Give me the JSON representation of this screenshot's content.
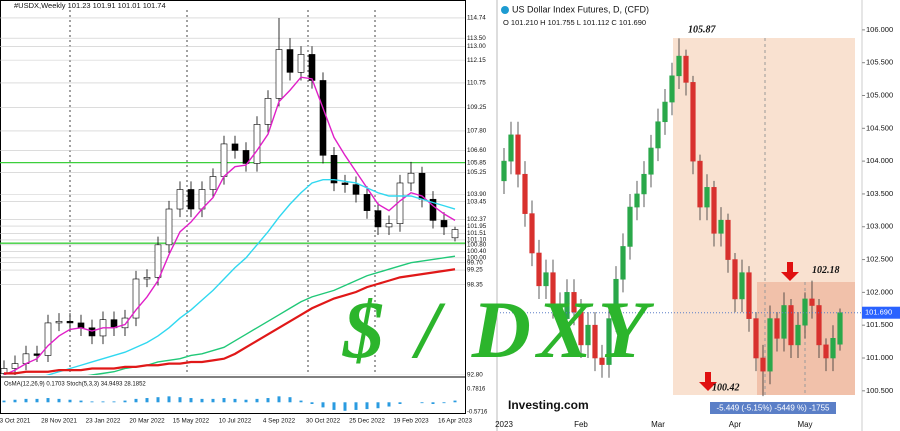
{
  "chart_data": [
    {
      "type": "candlestick",
      "title": "#USDX,Weekly  101.23 101.91 101.01 101.74",
      "categories": [
        null,
        "3 Oct 2021",
        null,
        null,
        null,
        "28 Nov 2021",
        null,
        null,
        null,
        "23 Jan 2022",
        null,
        null,
        null,
        "20 Mar 2022",
        null,
        null,
        null,
        "15 May 2022",
        null,
        null,
        null,
        "10 Jul 2022",
        null,
        null,
        null,
        "4 Sep 2022",
        null,
        null,
        null,
        "30 Oct 2022",
        null,
        null,
        null,
        "25 Dec 2022",
        null,
        null,
        null,
        "19 Feb 2023",
        null,
        null,
        null,
        "16 Apr 2023"
      ],
      "open": [
        92.9,
        93.2,
        93.5,
        94.1,
        94.0,
        96.0,
        96.1,
        96.0,
        95.7,
        95.2,
        96.2,
        95.7,
        96.3,
        98.7,
        98.8,
        100.8,
        103.0,
        104.2,
        103.0,
        104.2,
        105.0,
        107.0,
        106.6,
        105.8,
        108.2,
        109.8,
        112.8,
        111.4,
        112.5,
        110.9,
        106.3,
        104.6,
        104.5,
        103.9,
        102.9,
        101.9,
        102.1,
        104.6,
        105.2,
        103.6,
        102.3,
        101.23
      ],
      "high": [
        93.7,
        94.0,
        94.6,
        94.6,
        96.5,
        96.6,
        96.6,
        96.5,
        96.2,
        96.7,
        96.7,
        96.8,
        99.2,
        99.3,
        101.3,
        103.5,
        104.7,
        104.7,
        104.7,
        105.5,
        107.5,
        107.5,
        107.1,
        108.7,
        110.3,
        114.74,
        113.5,
        113.0,
        113.0,
        111.4,
        106.8,
        105.1,
        105.0,
        104.4,
        103.4,
        102.6,
        105.1,
        105.9,
        105.6,
        104.1,
        102.8,
        101.91
      ],
      "low": [
        92.5,
        92.8,
        93.1,
        93.6,
        93.6,
        95.5,
        95.5,
        95.2,
        94.7,
        94.7,
        95.2,
        95.2,
        95.8,
        98.2,
        98.3,
        100.3,
        102.5,
        102.5,
        102.5,
        103.7,
        104.5,
        106.1,
        105.3,
        105.3,
        107.7,
        109.3,
        110.9,
        110.9,
        110.4,
        105.8,
        104.1,
        104.0,
        103.4,
        102.4,
        101.4,
        101.4,
        101.6,
        104.1,
        103.1,
        101.8,
        101.4,
        101.01
      ],
      "close": [
        93.2,
        93.5,
        94.1,
        94.0,
        96.0,
        96.1,
        96.0,
        95.7,
        95.2,
        96.2,
        95.7,
        96.3,
        98.7,
        98.8,
        100.8,
        103.0,
        104.2,
        103.0,
        104.2,
        105.0,
        107.0,
        106.6,
        105.8,
        108.2,
        109.8,
        112.8,
        111.4,
        112.5,
        110.9,
        106.3,
        104.6,
        104.5,
        103.9,
        102.9,
        101.9,
        102.1,
        104.6,
        105.2,
        103.6,
        102.3,
        101.9,
        101.74
      ],
      "up_color": "#ffffff",
      "down_color": "#000000",
      "wick_color": "#000000",
      "series": [
        {
          "color": "#e020c8",
          "values": [
            92.8,
            93.1,
            93.5,
            93.8,
            94.6,
            95.2,
            95.6,
            95.7,
            95.5,
            95.7,
            95.7,
            95.9,
            96.8,
            97.6,
            98.6,
            100.2,
            101.6,
            102.2,
            103.0,
            103.7,
            105.0,
            105.6,
            105.7,
            106.6,
            107.6,
            109.6,
            110.3,
            111.1,
            111.0,
            109.2,
            107.4,
            106.3,
            105.3,
            104.3,
            103.3,
            102.9,
            103.5,
            104.0,
            103.8,
            103.2,
            102.7,
            102.3
          ]
        },
        {
          "color": "#30d8f0",
          "values": [
            92.3,
            92.4,
            92.5,
            92.6,
            92.8,
            93.0,
            93.2,
            93.4,
            93.6,
            93.8,
            94.0,
            94.2,
            94.5,
            94.8,
            95.2,
            95.7,
            96.3,
            96.8,
            97.4,
            98.0,
            98.7,
            99.4,
            100.0,
            100.8,
            101.6,
            102.5,
            103.3,
            104.0,
            104.6,
            104.8,
            104.8,
            104.7,
            104.6,
            104.3,
            104.0,
            103.8,
            103.8,
            103.8,
            103.6,
            103.4,
            103.2,
            103.0
          ]
        },
        {
          "color": "#20c878",
          "values": [
            92.0,
            92.1,
            92.2,
            92.3,
            92.4,
            92.5,
            92.6,
            92.7,
            92.8,
            92.9,
            93.0,
            93.2,
            93.3,
            93.4,
            93.6,
            93.7,
            93.8,
            94.0,
            94.1,
            94.3,
            94.5,
            94.9,
            95.3,
            95.7,
            96.1,
            96.5,
            96.9,
            97.3,
            97.6,
            97.8,
            98.0,
            98.3,
            98.6,
            98.9,
            99.1,
            99.3,
            99.5,
            99.7,
            99.8,
            99.9,
            100.0,
            100.1
          ]
        },
        {
          "color": "#e01818",
          "values": [
            92.9,
            92.9,
            93.0,
            93.0,
            93.0,
            93.1,
            93.1,
            93.1,
            93.2,
            93.2,
            93.2,
            93.3,
            93.3,
            93.4,
            93.4,
            93.5,
            93.5,
            93.6,
            93.6,
            93.7,
            93.8,
            94.1,
            94.5,
            94.9,
            95.3,
            95.7,
            96.1,
            96.5,
            96.9,
            97.2,
            97.5,
            97.7,
            97.9,
            98.2,
            98.4,
            98.6,
            98.8,
            98.9,
            99.0,
            99.1,
            99.2,
            99.3
          ]
        }
      ],
      "levels": [
        {
          "value": 105.85,
          "color": "#3ccf3c"
        },
        {
          "value": 100.9,
          "color": "#3ccf3c"
        }
      ],
      "ylim": [
        92.8,
        115.23
      ],
      "yticks": [
        114.74,
        {
          "value": 113.5,
          "label": "113.50"
        },
        {
          "value": 113.0,
          "label": "113.00"
        },
        112.15,
        110.75,
        109.25,
        {
          "value": 107.8,
          "label": "107.80"
        },
        {
          "value": 106.6,
          "label": "106.60"
        },
        105.85,
        105.25,
        {
          "value": 103.9,
          "label": "103.90"
        },
        103.45,
        102.37,
        101.95,
        101.51,
        {
          "value": 101.1,
          "label": "101.10"
        },
        {
          "value": 100.8,
          "label": "100.80"
        },
        {
          "value": 100.4,
          "label": "100.40"
        },
        {
          "value": 100.0,
          "label": "100.00"
        },
        {
          "value": 99.7,
          "label": "99.70"
        },
        99.25,
        98.35,
        {
          "value": 92.8,
          "label": "92.80"
        }
      ],
      "grid": true,
      "indicator": {
        "label": "OsMA(12,26,9) 0.1703  Stoch(5,3,3) 34.9493 28.1852",
        "color": "#2a9be0",
        "values": [
          0.1,
          0.15,
          0.2,
          0.2,
          0.25,
          0.2,
          0.15,
          0.1,
          0.05,
          0.05,
          0.05,
          0.1,
          0.2,
          0.25,
          0.3,
          0.35,
          0.3,
          0.25,
          0.2,
          0.2,
          0.25,
          0.2,
          0.15,
          0.2,
          0.25,
          0.35,
          0.3,
          0.1,
          -0.1,
          -0.3,
          -0.45,
          -0.5,
          -0.45,
          -0.4,
          -0.35,
          -0.25,
          -0.1,
          0.0,
          -0.05,
          -0.1,
          -0.05,
          0.1
        ],
        "ylim": [
          -0.5716,
          0.7816
        ],
        "yticks": [
          0.7816,
          -0.5716
        ]
      }
    },
    {
      "type": "candlestick",
      "title": "US Dollar Index Futures, D, (CFD)",
      "subtitle": "O 101.210  H 101.755  L 101.112  C 101.690",
      "categories": [
        "2023",
        null,
        null,
        null,
        null,
        null,
        null,
        null,
        null,
        null,
        null,
        "Feb",
        null,
        null,
        null,
        null,
        null,
        null,
        null,
        null,
        null,
        null,
        "Mar",
        null,
        null,
        null,
        null,
        null,
        null,
        null,
        null,
        null,
        null,
        "Apr",
        null,
        null,
        null,
        null,
        null,
        null,
        null,
        null,
        null,
        "May",
        null,
        null,
        null,
        null,
        null
      ],
      "open": [
        103.7,
        104.0,
        104.4,
        103.8,
        103.2,
        102.6,
        102.1,
        102.3,
        101.8,
        101.6,
        102.0,
        101.7,
        101.2,
        101.5,
        101.0,
        100.9,
        101.6,
        102.2,
        102.7,
        103.3,
        103.5,
        103.8,
        104.2,
        104.6,
        104.9,
        105.3,
        105.6,
        105.2,
        104.0,
        103.3,
        103.6,
        102.9,
        103.1,
        102.5,
        101.9,
        102.3,
        101.6,
        101.0,
        100.8,
        101.6,
        101.3,
        101.8,
        101.2,
        101.5,
        101.9,
        101.8,
        101.2,
        101.0,
        101.21
      ],
      "high": [
        104.2,
        104.6,
        104.6,
        104.0,
        103.4,
        102.8,
        102.5,
        102.5,
        102.0,
        102.2,
        102.2,
        101.9,
        101.7,
        101.7,
        101.2,
        101.8,
        102.4,
        102.9,
        103.5,
        103.7,
        104.0,
        104.4,
        104.8,
        105.1,
        105.5,
        105.87,
        105.7,
        105.3,
        104.1,
        103.8,
        103.7,
        103.3,
        103.2,
        102.6,
        102.5,
        102.4,
        101.7,
        101.2,
        101.8,
        101.7,
        102.0,
        101.9,
        101.7,
        102.0,
        102.18,
        101.9,
        101.3,
        101.5,
        101.755
      ],
      "low": [
        103.5,
        103.8,
        103.6,
        103.0,
        102.4,
        101.9,
        101.9,
        101.6,
        101.4,
        101.4,
        101.5,
        101.0,
        101.0,
        100.8,
        100.7,
        100.7,
        101.4,
        102.0,
        102.5,
        103.1,
        103.3,
        103.6,
        104.0,
        104.4,
        104.7,
        105.1,
        105.0,
        103.8,
        103.1,
        103.1,
        102.7,
        102.7,
        102.3,
        101.7,
        101.7,
        101.4,
        100.8,
        100.42,
        100.6,
        101.1,
        101.1,
        101.0,
        101.0,
        101.3,
        101.6,
        101.0,
        100.8,
        100.8,
        101.112
      ],
      "close": [
        104.0,
        104.4,
        103.8,
        103.2,
        102.6,
        102.1,
        102.3,
        101.8,
        101.6,
        102.0,
        101.7,
        101.2,
        101.5,
        101.0,
        100.9,
        101.6,
        102.2,
        102.7,
        103.3,
        103.5,
        103.8,
        104.2,
        104.6,
        104.9,
        105.3,
        105.6,
        105.2,
        104.0,
        103.3,
        103.6,
        102.9,
        103.1,
        102.5,
        101.9,
        102.3,
        101.6,
        101.0,
        100.8,
        101.6,
        101.3,
        101.8,
        101.2,
        101.5,
        101.9,
        101.8,
        101.2,
        101.0,
        101.3,
        101.69
      ],
      "value_labels": {
        "48": "101.690"
      },
      "up_color": "#2aa84a",
      "down_color": "#d8312e",
      "wick_color": "#333333",
      "annotations": [
        105.87,
        102.18,
        100.42
      ],
      "change_text": "-5.449 (-5.15%) -5449 %) -1755",
      "ylim": [
        100.36,
        106.12
      ],
      "yticks": [
        {
          "value": 106.0,
          "label": "106.000"
        },
        {
          "value": 105.5,
          "label": "105.500"
        },
        {
          "value": 105.0,
          "label": "105.000"
        },
        {
          "value": 104.5,
          "label": "104.500"
        },
        {
          "value": 104.0,
          "label": "104.000"
        },
        {
          "value": 103.5,
          "label": "103.500"
        },
        {
          "value": 103.0,
          "label": "103.000"
        },
        {
          "value": 102.5,
          "label": "102.500"
        },
        {
          "value": 102.0,
          "label": "102.000"
        },
        {
          "value": 101.5,
          "label": "101.500"
        },
        {
          "value": 101.0,
          "label": "101.000"
        },
        {
          "value": 100.5,
          "label": "100.500"
        }
      ],
      "grid": false
    }
  ],
  "overlay": "$ / DXY",
  "logo": "Investing.com"
}
